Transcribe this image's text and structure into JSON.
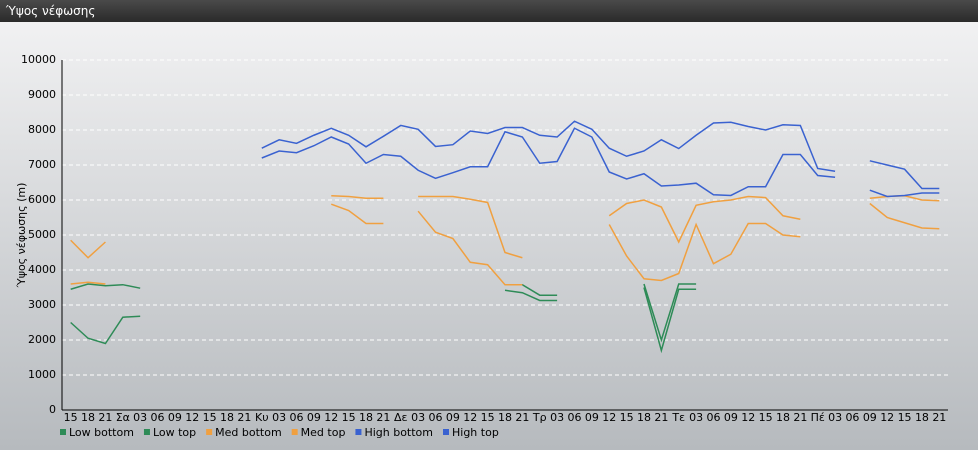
{
  "chart_data": {
    "type": "line",
    "title": "Ύψος νέφωσης",
    "y_label": "Ύψος νέφωσης (m)",
    "categories": [
      "15",
      "18",
      "21",
      "Σα",
      "03",
      "06",
      "09",
      "12",
      "15",
      "18",
      "21",
      "Κυ",
      "03",
      "06",
      "09",
      "12",
      "15",
      "18",
      "21",
      "Δε",
      "03",
      "06",
      "09",
      "12",
      "15",
      "18",
      "21",
      "Τρ",
      "03",
      "06",
      "09",
      "12",
      "15",
      "18",
      "21",
      "Τε",
      "03",
      "06",
      "09",
      "12",
      "15",
      "18",
      "21",
      "Πέ",
      "03",
      "06",
      "09",
      "12",
      "15",
      "18",
      "21"
    ],
    "ylim": [
      0,
      10000
    ],
    "yticks": [
      0,
      1000,
      2000,
      3000,
      4000,
      5000,
      6000,
      7000,
      8000,
      9000,
      10000
    ],
    "grid": true,
    "series": [
      {
        "name": "Low bottom",
        "color": "#2e8b57",
        "values": [
          2500,
          2050,
          1900,
          2650,
          2680,
          null,
          null,
          null,
          null,
          null,
          null,
          null,
          null,
          null,
          null,
          null,
          null,
          null,
          null,
          null,
          null,
          null,
          null,
          null,
          null,
          3420,
          3350,
          3130,
          3130,
          null,
          null,
          null,
          null,
          3500,
          1700,
          3450,
          3450,
          null,
          null,
          null,
          null,
          null,
          null,
          null,
          null,
          null,
          null,
          null,
          null,
          null,
          null
        ]
      },
      {
        "name": "Low top",
        "color": "#2e8b57",
        "values": [
          3450,
          3600,
          3550,
          3580,
          3480,
          null,
          null,
          null,
          null,
          null,
          null,
          null,
          null,
          null,
          null,
          null,
          null,
          null,
          null,
          null,
          null,
          null,
          null,
          null,
          null,
          3580,
          3580,
          3280,
          3280,
          null,
          null,
          null,
          null,
          3600,
          2000,
          3600,
          3600,
          null,
          null,
          null,
          null,
          null,
          null,
          null,
          null,
          null,
          null,
          null,
          null,
          null,
          null
        ]
      },
      {
        "name": "Med bottom",
        "color": "#f0a040",
        "values": [
          3600,
          3650,
          3600,
          null,
          null,
          null,
          null,
          null,
          null,
          null,
          null,
          null,
          null,
          null,
          null,
          5880,
          5700,
          5330,
          5330,
          null,
          5680,
          5080,
          4900,
          4220,
          4150,
          3580,
          3580,
          null,
          null,
          null,
          null,
          5300,
          4400,
          3750,
          3700,
          3900,
          5300,
          4180,
          4450,
          5330,
          5330,
          5000,
          4950,
          null,
          null,
          null,
          5900,
          5500,
          5350,
          5200,
          5180
        ]
      },
      {
        "name": "Med top",
        "color": "#f0a040",
        "values": [
          4850,
          4350,
          4800,
          null,
          null,
          null,
          null,
          null,
          null,
          null,
          null,
          null,
          null,
          null,
          null,
          6120,
          6100,
          6050,
          6050,
          null,
          6100,
          6100,
          6100,
          6020,
          5930,
          4500,
          4350,
          null,
          null,
          null,
          null,
          5550,
          5900,
          6000,
          5800,
          4800,
          5850,
          5950,
          6000,
          6100,
          6070,
          5550,
          5450,
          null,
          null,
          null,
          6050,
          6100,
          6120,
          6000,
          5980
        ]
      },
      {
        "name": "High bottom",
        "color": "#3a62d0",
        "values": [
          null,
          null,
          null,
          null,
          null,
          null,
          null,
          null,
          null,
          null,
          null,
          7200,
          7400,
          7350,
          7550,
          7800,
          7600,
          7050,
          7300,
          7250,
          6850,
          6620,
          6780,
          6950,
          6950,
          7950,
          7800,
          7050,
          7100,
          8050,
          7800,
          6800,
          6600,
          6750,
          6400,
          6430,
          6480,
          6150,
          6130,
          6380,
          6380,
          7300,
          7300,
          6700,
          6650,
          null,
          6280,
          6100,
          6130,
          6200,
          6200
        ]
      },
      {
        "name": "High top",
        "color": "#3a62d0",
        "values": [
          null,
          null,
          null,
          null,
          null,
          null,
          null,
          null,
          null,
          null,
          null,
          7480,
          7720,
          7620,
          7850,
          8050,
          7850,
          7520,
          7820,
          8130,
          8020,
          7530,
          7580,
          7970,
          7900,
          8070,
          8070,
          7850,
          7800,
          8250,
          8020,
          7480,
          7250,
          7400,
          7720,
          7470,
          7850,
          8200,
          8220,
          8100,
          8000,
          8150,
          8130,
          6900,
          6820,
          null,
          7120,
          7000,
          6880,
          6330,
          6330
        ]
      }
    ]
  }
}
